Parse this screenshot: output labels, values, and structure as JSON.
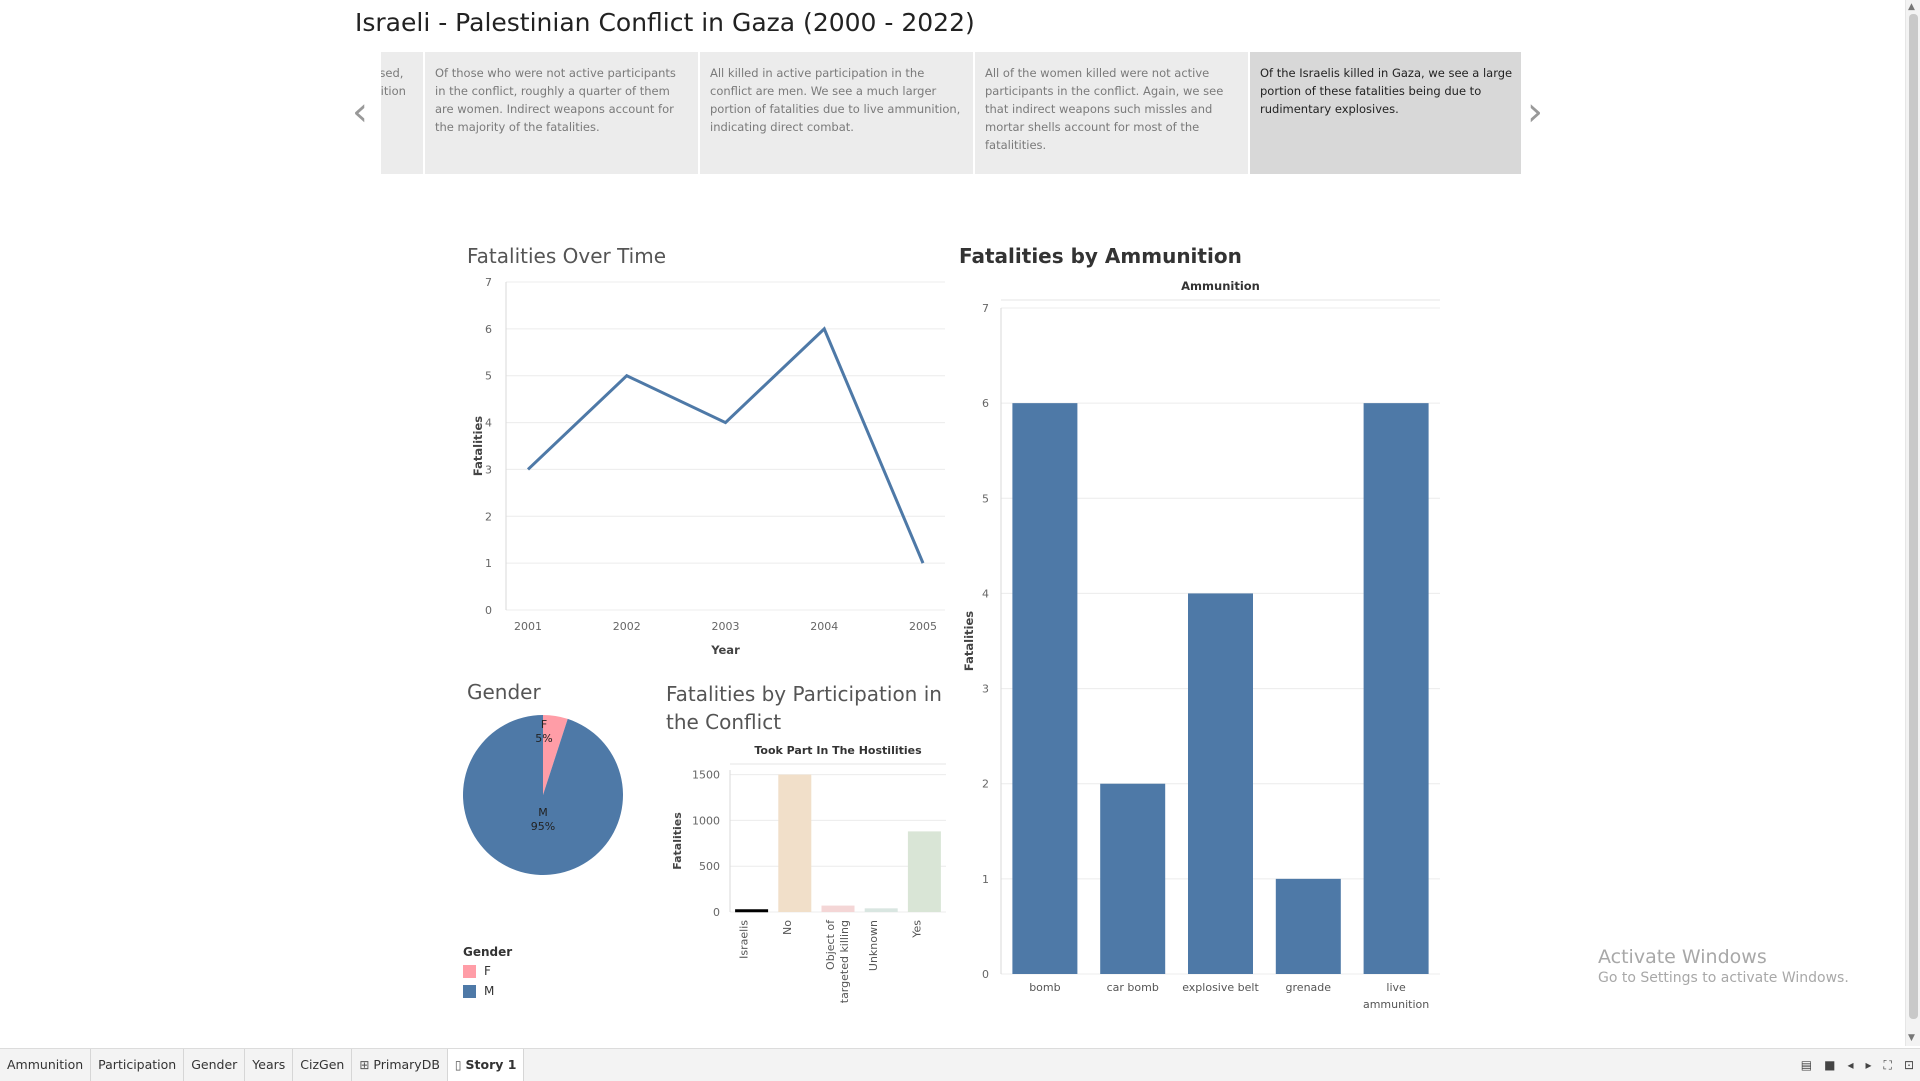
{
  "story_title": "Israeli - Palestinian Conflict in Gaza (2000 - 2022)",
  "story_points": [
    {
      "text": "the conflict, we see the ammunition used, with ... mostly killed by ... live ammunition in them."
    },
    {
      "text": "Of those who were not active participants in the conflict, roughly a quarter of them are women. Indirect weapons account for the majority of the fatalities."
    },
    {
      "text": "All killed in active participation in the conflict are men. We see a much larger portion of fatalities due to live ammunition, indicating direct combat."
    },
    {
      "text": "All of the women killed were not active participants in the conflict. Again, we see that indirect weapons such missles and mortar shells account for most of the fatalitities."
    },
    {
      "text": "Of the Israelis killed in Gaza, we see a large portion of these fatalities being due to rudimentary explosives.",
      "active": true
    }
  ],
  "nav": {
    "prev_icon": "chevron-left-icon",
    "next_icon": "chevron-right-icon"
  },
  "line_chart": {
    "title": "Fatalities Over Time",
    "chart_data": {
      "type": "line",
      "title": "Fatalities Over Time",
      "xlabel": "Year",
      "ylabel": "Fatalities",
      "x": [
        2001,
        2002,
        2003,
        2004,
        2005
      ],
      "y": [
        3,
        5,
        4,
        6,
        1
      ],
      "y_ticks": [
        0,
        1,
        2,
        3,
        4,
        5,
        6,
        7
      ],
      "ylim": [
        0,
        7
      ],
      "grid": true,
      "color": "#4e79a7"
    }
  },
  "bar_chart": {
    "title": "Fatalities by Ammunition",
    "chart_data": {
      "type": "bar",
      "title": "Fatalities by Ammunition",
      "header": "Ammunition",
      "ylabel": "Fatalities",
      "categories": [
        "bomb",
        "car bomb",
        "explosive belt",
        "grenade",
        "live ammunition"
      ],
      "values": [
        6,
        2,
        4,
        1,
        6
      ],
      "y_ticks": [
        0,
        1,
        2,
        3,
        4,
        5,
        6,
        7
      ],
      "ylim": [
        0,
        7
      ],
      "grid": true,
      "color": "#4e79a7"
    }
  },
  "pie_chart": {
    "title": "Gender",
    "chart_data": {
      "type": "pie",
      "title": "Gender",
      "categories": [
        "F",
        "M"
      ],
      "percent_labels": [
        "5%",
        "95%"
      ],
      "values": [
        5,
        95
      ],
      "colors": [
        "#ff9da7",
        "#4e79a7"
      ]
    },
    "legend_title": "Gender",
    "legend": [
      {
        "label": "F",
        "color": "#ff9da7"
      },
      {
        "label": "M",
        "color": "#4e79a7"
      }
    ]
  },
  "participation_chart": {
    "title": "Fatalities by Participation in the Conflict",
    "chart_data": {
      "type": "bar",
      "title": "Fatalities by Participation in the Conflict",
      "header": "Took Part In The Hostilities",
      "ylabel": "Fatalities",
      "categories": [
        "Israelis",
        "No",
        "Object of targeted killing",
        "Unknown",
        "Yes"
      ],
      "values": [
        30,
        1500,
        70,
        40,
        880
      ],
      "colors": [
        "#000000",
        "#f1dfc9",
        "#f4d6d6",
        "#d9e6e1",
        "#d9e5d6"
      ],
      "y_ticks": [
        0,
        500,
        1000,
        1500
      ],
      "ylim": [
        0,
        1550
      ],
      "grid": true
    }
  },
  "watermark": {
    "line1": "Activate Windows",
    "line2": "Go to Settings to activate Windows."
  },
  "tabs": [
    {
      "label": "Ammunition"
    },
    {
      "label": "Participation"
    },
    {
      "label": "Gender"
    },
    {
      "label": "Years"
    },
    {
      "label": "CizGen"
    },
    {
      "label": "PrimaryDB",
      "icon": "grid-icon"
    },
    {
      "label": "Story 1",
      "icon": "book-icon",
      "active": true
    }
  ]
}
